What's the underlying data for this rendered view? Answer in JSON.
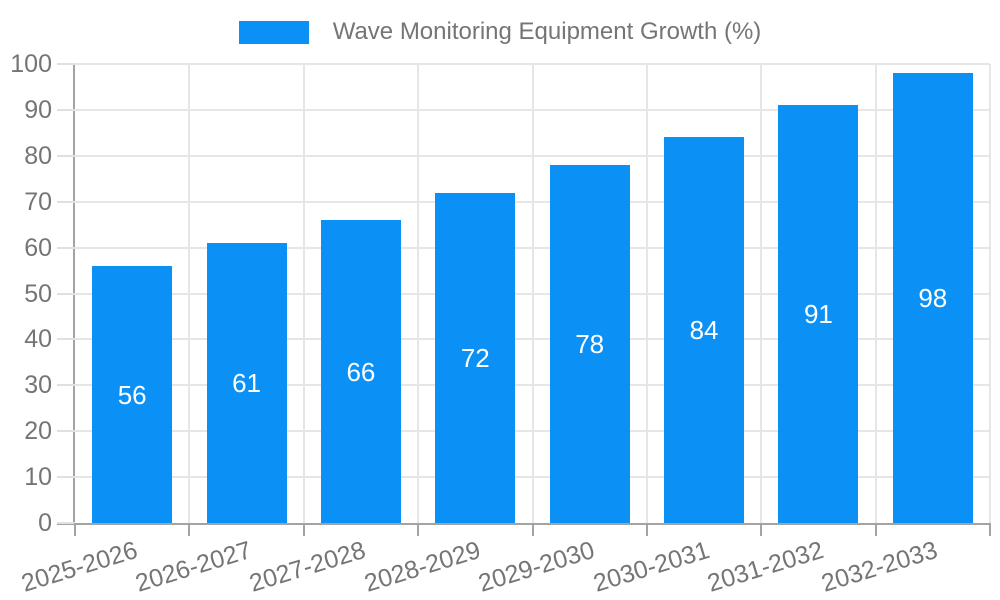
{
  "chart_data": {
    "type": "bar",
    "title": "",
    "legend": "Wave Monitoring Equipment Growth (%)",
    "legend_position": "top-center",
    "categories": [
      "2025-2026",
      "2026-2027",
      "2027-2028",
      "2028-2029",
      "2029-2030",
      "2030-2031",
      "2031-2032",
      "2032-2033"
    ],
    "values": [
      56,
      61,
      66,
      72,
      78,
      84,
      91,
      98
    ],
    "xlabel": "",
    "ylabel": "",
    "ylim": [
      0,
      100
    ],
    "yticks": [
      0,
      10,
      20,
      30,
      40,
      50,
      60,
      70,
      80,
      90,
      100
    ],
    "grid": true,
    "bar_labels_inside": true,
    "xtick_rotation_deg": -17
  },
  "colors": {
    "bar": "#0b90f5",
    "bar_label": "#ffffff",
    "axis_text": "#757575"
  }
}
